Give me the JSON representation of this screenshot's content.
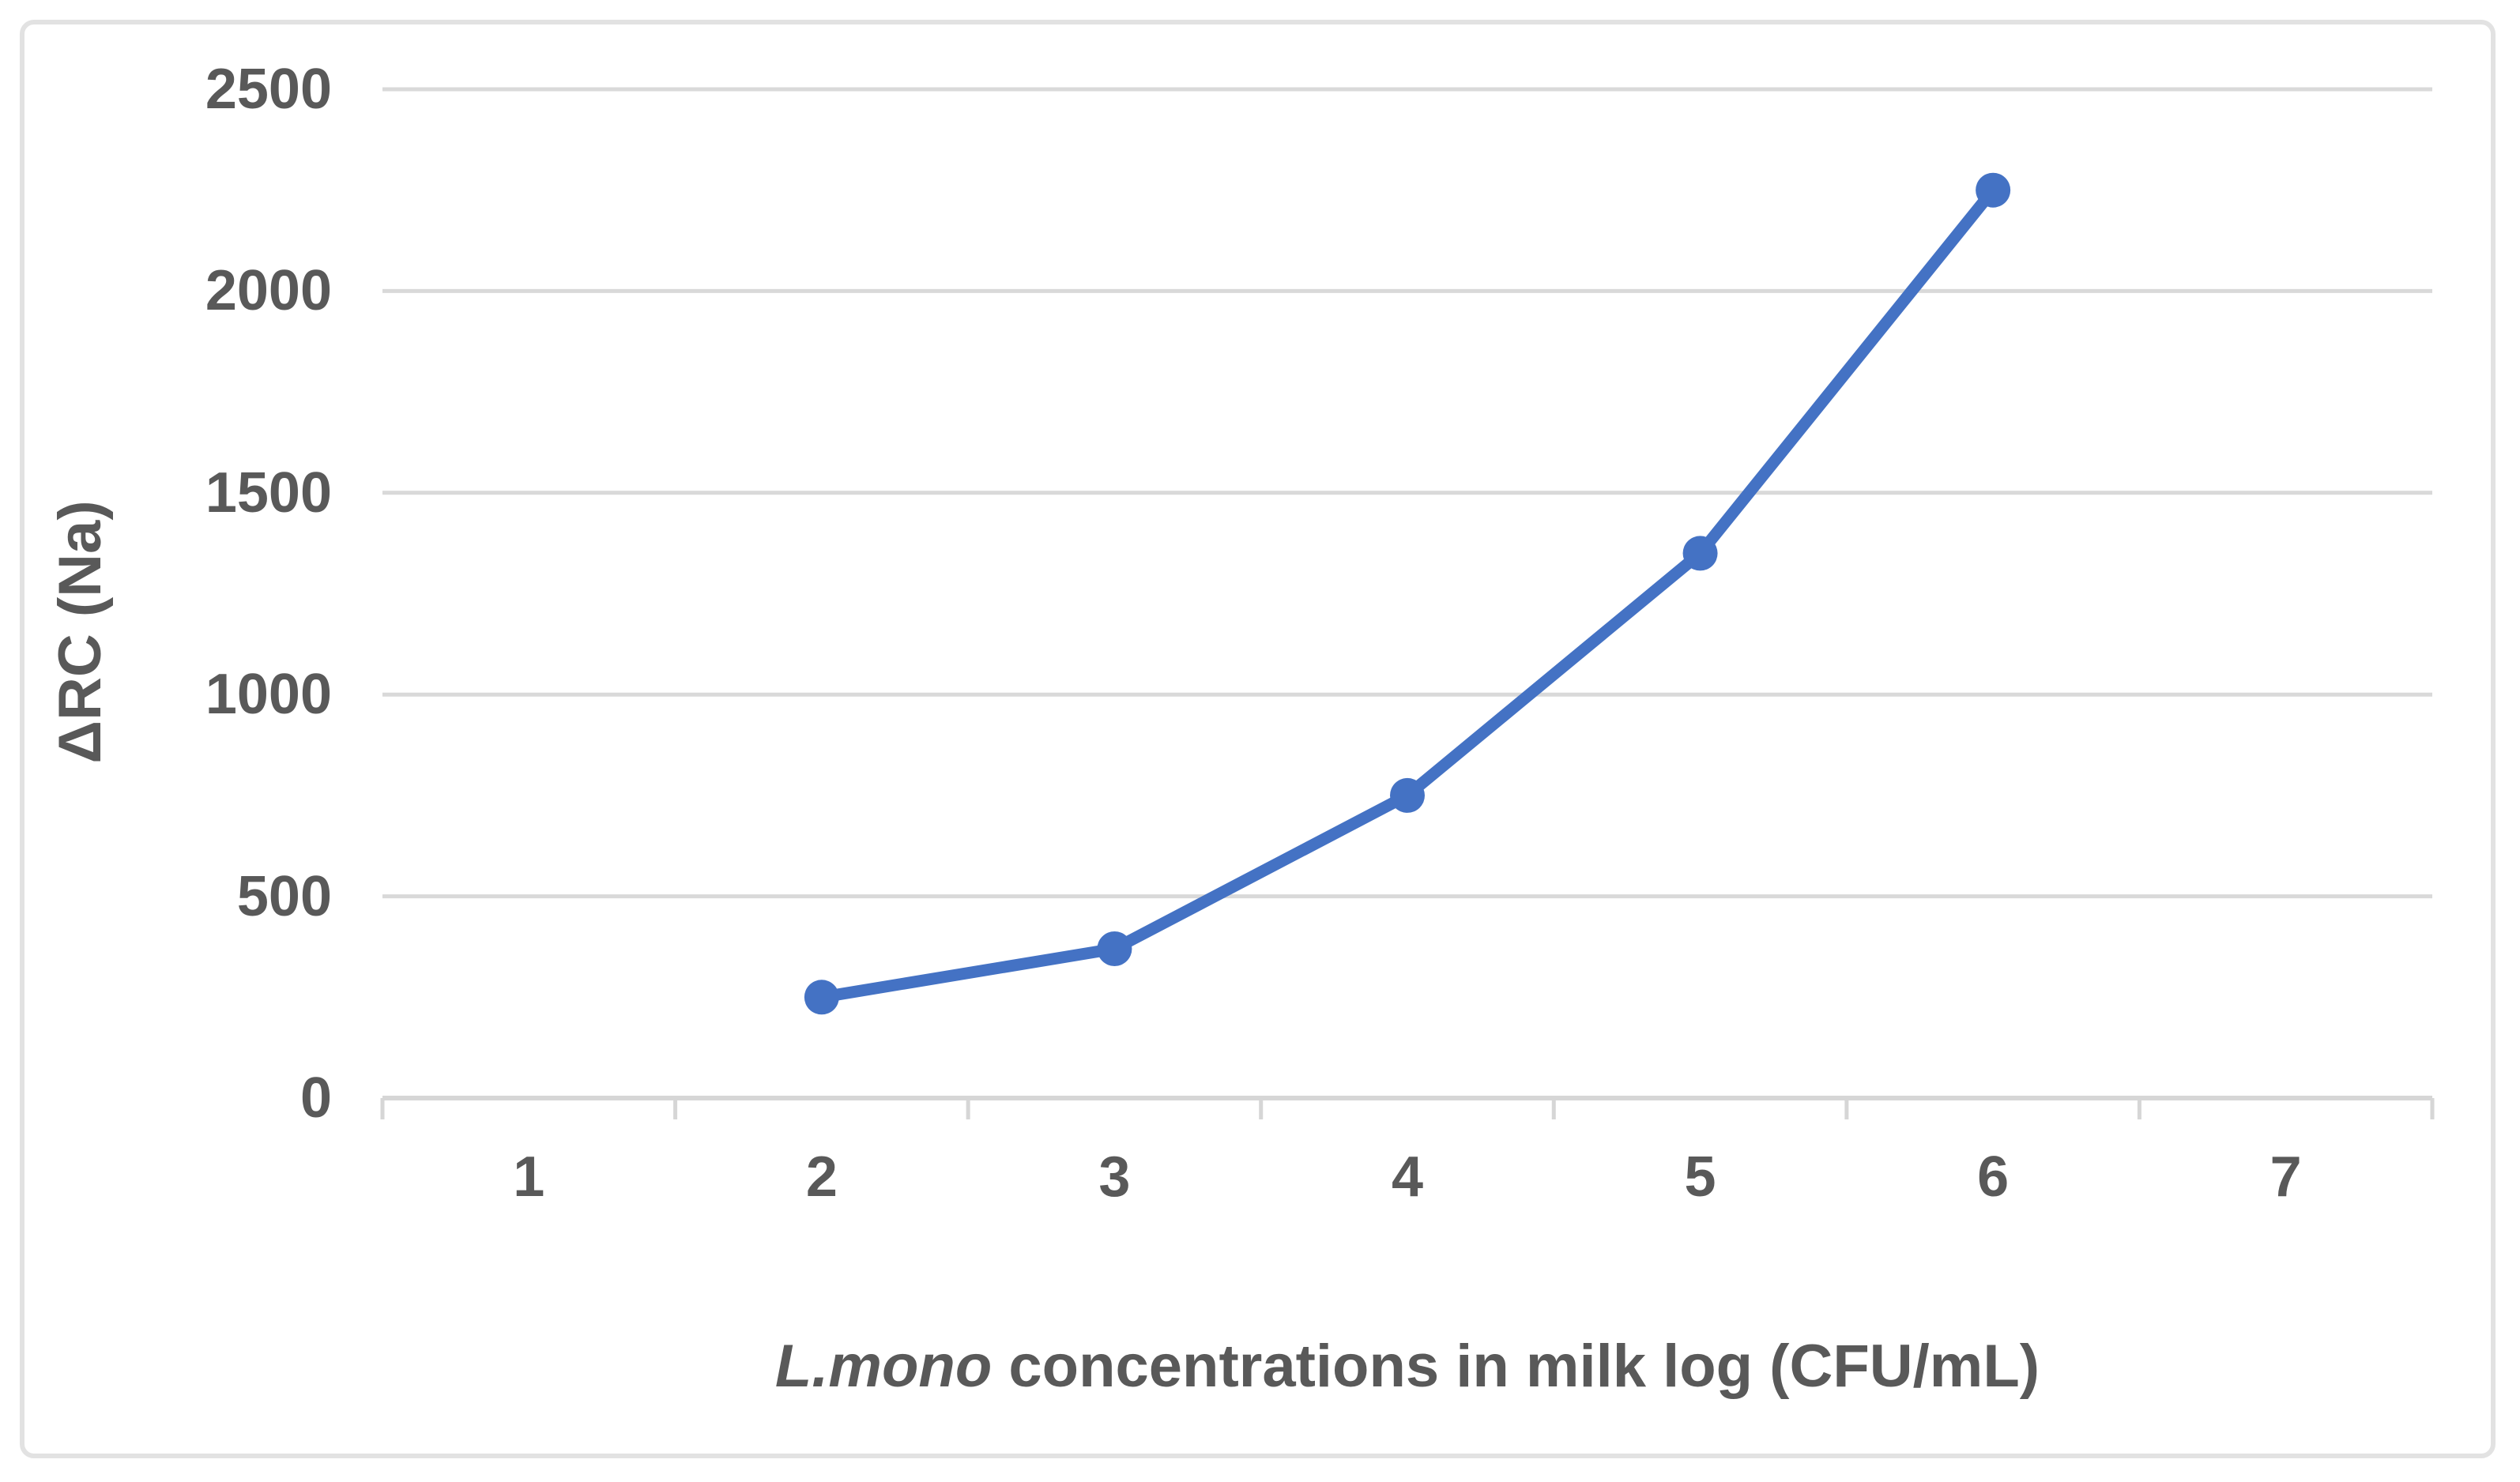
{
  "chart_data": {
    "type": "line",
    "x": [
      2,
      3,
      4,
      5,
      6
    ],
    "y": [
      250,
      370,
      750,
      1350,
      2250
    ],
    "x_ticks": [
      1,
      2,
      3,
      4,
      5,
      6,
      7
    ],
    "y_ticks": [
      0,
      500,
      1000,
      1500,
      2000,
      2500
    ],
    "xlim": [
      0.5,
      7.5
    ],
    "ylim": [
      0,
      2500
    ],
    "xlabel": "L.mono concentrations in milk log (CFU/mL)",
    "xlabel_italic_part": "L.mono",
    "xlabel_regular_part": " concentrations in milk log (CFU/mL)",
    "ylabel": "ΔRC (Na)",
    "title": "",
    "legend": "none",
    "grid": "horizontal",
    "marker": "circle",
    "line_color": "#4472C4",
    "marker_color": "#4472C4",
    "text_color": "#595959",
    "gridline_color": "#D9D9D9",
    "axis_line_color": "#D6D6D6",
    "figure_border_color": "#E2E2E2",
    "background_color": "#FFFFFF"
  }
}
